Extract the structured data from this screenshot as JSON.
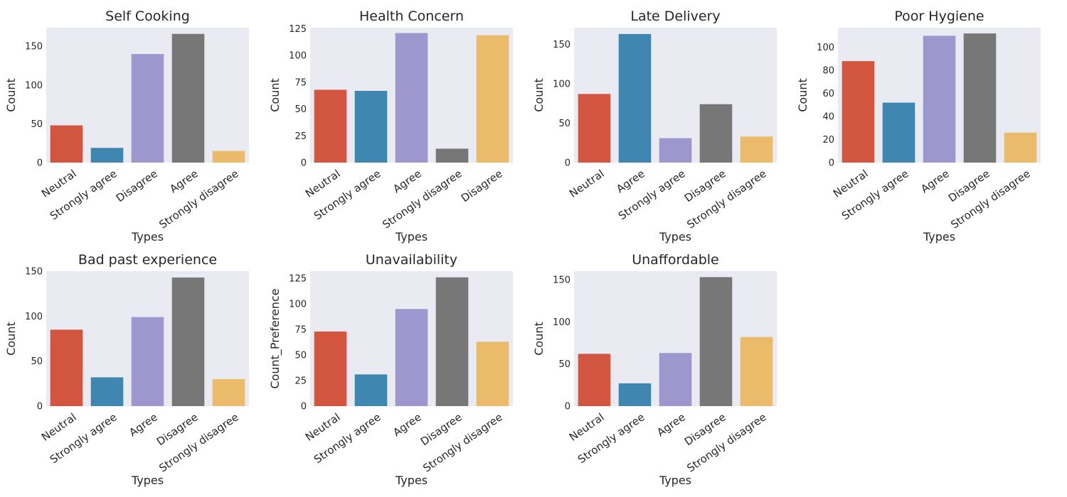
{
  "figure": {
    "xlabel": "Types",
    "colors": [
      "#d1553f",
      "#3f87b1",
      "#9d97cd",
      "#777777",
      "#e9bb6b"
    ]
  },
  "chart_data": [
    {
      "type": "bar",
      "title": "Self Cooking",
      "xlabel": "Types",
      "ylabel": "Count",
      "categories": [
        "Neutral",
        "Strongly agree",
        "Disagree",
        "Agree",
        "Strongly disagree"
      ],
      "values": [
        48,
        19,
        140,
        166,
        15
      ],
      "ylim": [
        0,
        174
      ],
      "yticks": [
        0,
        50,
        100,
        150
      ]
    },
    {
      "type": "bar",
      "title": "Health Concern",
      "xlabel": "Types",
      "ylabel": "Count",
      "categories": [
        "Neutral",
        "Strongly agree",
        "Agree",
        "Strongly disagree",
        "Disagree"
      ],
      "values": [
        68,
        67,
        121,
        13,
        119
      ],
      "ylim": [
        0,
        126
      ],
      "yticks": [
        0,
        25,
        50,
        75,
        100,
        125
      ]
    },
    {
      "type": "bar",
      "title": "Late Delivery",
      "xlabel": "Types",
      "ylabel": "Count",
      "categories": [
        "Neutral",
        "Agree",
        "Strongly agree",
        "Disagree",
        "Strongly disagree"
      ],
      "values": [
        87,
        163,
        31,
        74,
        33
      ],
      "ylim": [
        0,
        171
      ],
      "yticks": [
        0,
        50,
        100,
        150
      ]
    },
    {
      "type": "bar",
      "title": "Poor Hygiene",
      "xlabel": "Types",
      "ylabel": "Count",
      "categories": [
        "Neutral",
        "Strongly agree",
        "Agree",
        "Disagree",
        "Strongly disagree"
      ],
      "values": [
        88,
        52,
        110,
        112,
        26
      ],
      "ylim": [
        0,
        117
      ],
      "yticks": [
        0,
        20,
        40,
        60,
        80,
        100
      ]
    },
    {
      "type": "bar",
      "title": "Bad past experience",
      "xlabel": "Types",
      "ylabel": "Count",
      "categories": [
        "Neutral",
        "Strongly agree",
        "Agree",
        "Disagree",
        "Strongly disagree"
      ],
      "values": [
        85,
        32,
        99,
        143,
        30
      ],
      "ylim": [
        0,
        150
      ],
      "yticks": [
        0,
        50,
        100,
        150
      ]
    },
    {
      "type": "bar",
      "title": "Unavailability",
      "xlabel": "Types",
      "ylabel": "Count_Preference",
      "categories": [
        "Neutral",
        "Strongly agree",
        "Agree",
        "Disagree",
        "Strongly disagree"
      ],
      "values": [
        73,
        31,
        95,
        126,
        63
      ],
      "ylim": [
        0,
        132
      ],
      "yticks": [
        0,
        25,
        50,
        75,
        100,
        125
      ]
    },
    {
      "type": "bar",
      "title": "Unaffordable",
      "xlabel": "Types",
      "ylabel": "Count",
      "categories": [
        "Neutral",
        "Strongly agree",
        "Agree",
        "Disagree",
        "Strongly disagree"
      ],
      "values": [
        62,
        27,
        63,
        153,
        82
      ],
      "ylim": [
        0,
        160
      ],
      "yticks": [
        0,
        50,
        100,
        150
      ]
    }
  ]
}
